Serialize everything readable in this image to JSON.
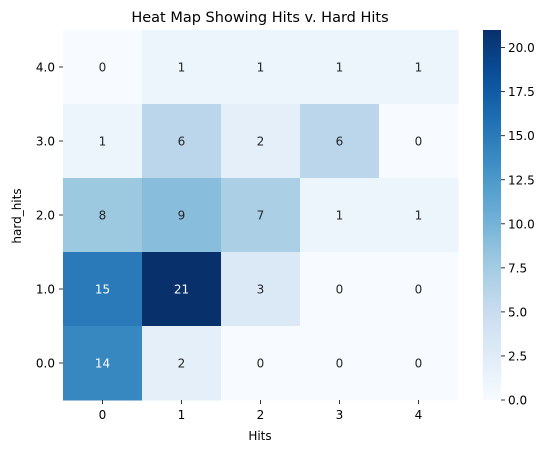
{
  "chart_data": {
    "type": "heatmap",
    "title": "Heat Map Showing Hits v. Hard Hits",
    "xlabel": "Hits",
    "ylabel": "hard_hits",
    "x_categories": [
      "0",
      "1",
      "2",
      "3",
      "4"
    ],
    "y_categories": [
      "4.0",
      "3.0",
      "2.0",
      "1.0",
      "0.0"
    ],
    "values": [
      [
        0,
        1,
        1,
        1,
        1
      ],
      [
        1,
        6,
        2,
        6,
        0
      ],
      [
        8,
        9,
        7,
        1,
        1
      ],
      [
        15,
        21,
        3,
        0,
        0
      ],
      [
        14,
        2,
        0,
        0,
        0
      ]
    ],
    "annotate": true,
    "colormap": "Blues",
    "vmin": 0,
    "vmax": 21,
    "colorbar_ticks": [
      "0.0",
      "2.5",
      "5.0",
      "7.5",
      "10.0",
      "12.5",
      "15.0",
      "17.5",
      "20.0"
    ],
    "colorbar_tick_values": [
      0,
      2.5,
      5,
      7.5,
      10,
      12.5,
      15,
      17.5,
      20
    ]
  }
}
